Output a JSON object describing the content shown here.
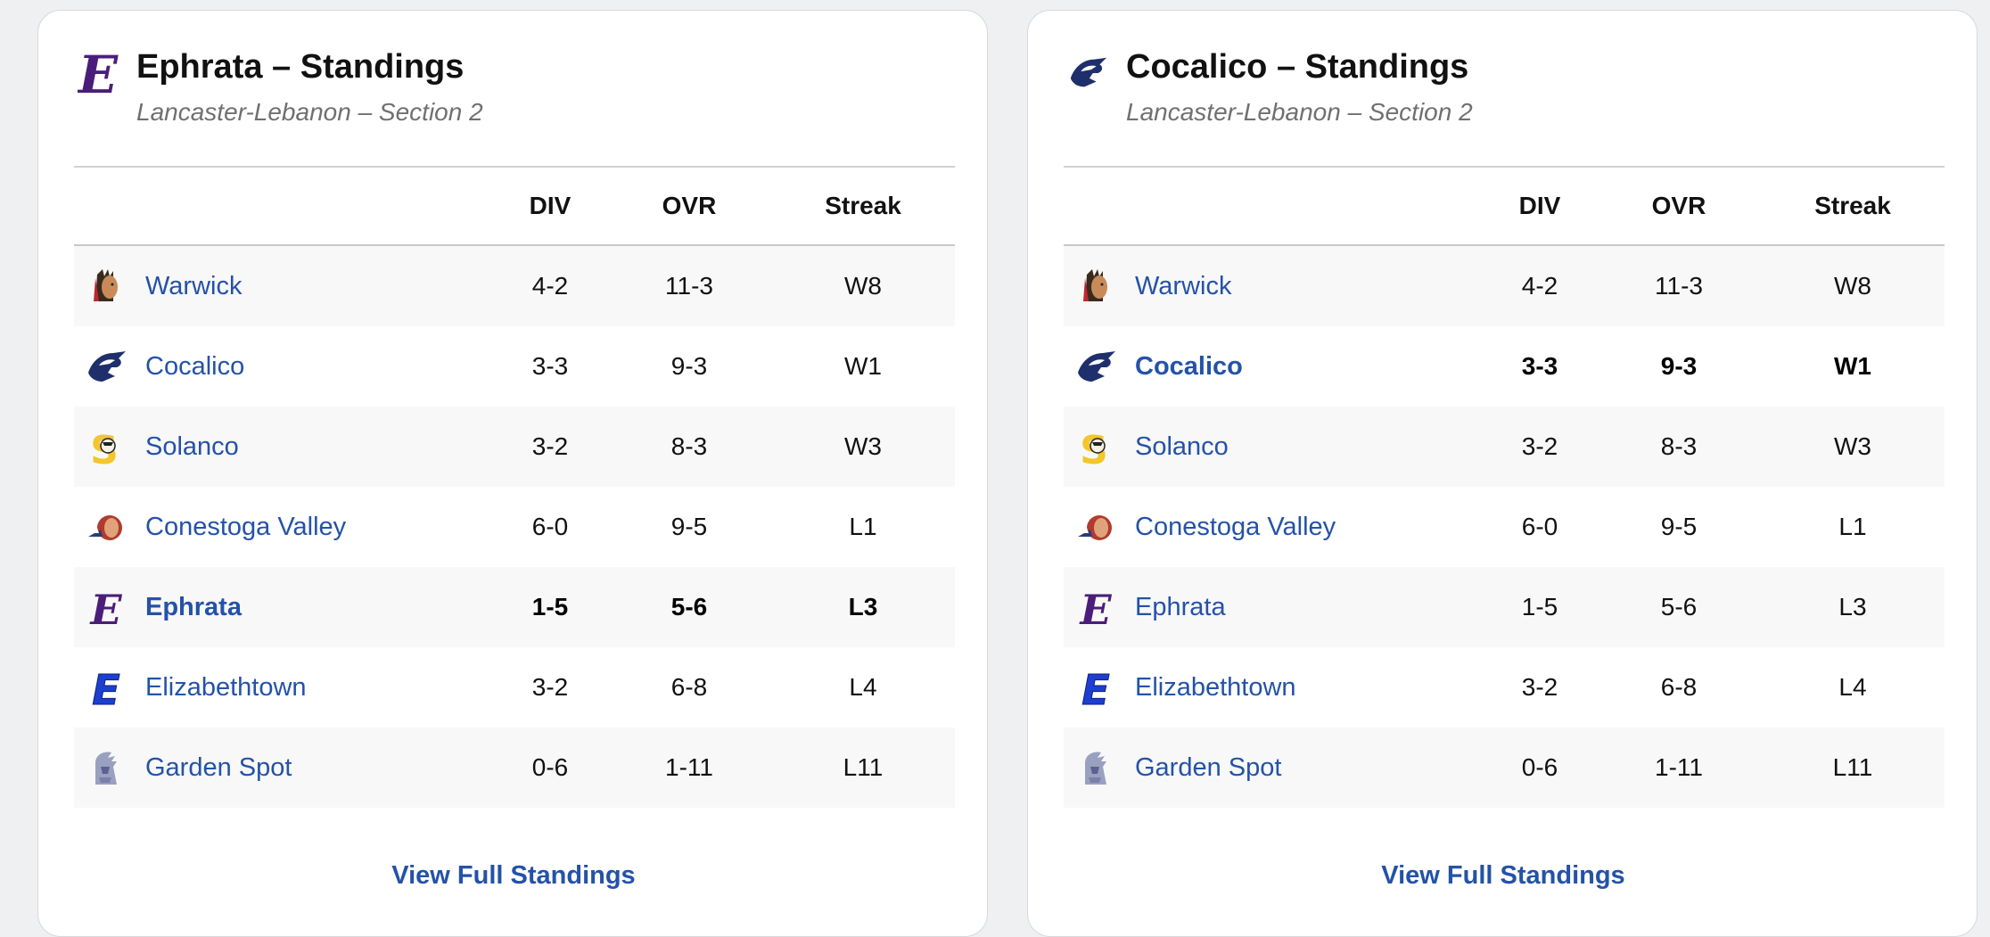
{
  "cards": [
    {
      "title": "Ephrata – Standings",
      "subtitle": "Lancaster-Lebanon – Section 2",
      "header_icon": "ephrata-logo",
      "columns": [
        "DIV",
        "OVR",
        "Streak"
      ],
      "rows": [
        {
          "team": "Warwick",
          "div": "4-2",
          "ovr": "11-3",
          "streak": "W8"
        },
        {
          "team": "Cocalico",
          "div": "3-3",
          "ovr": "9-3",
          "streak": "W1"
        },
        {
          "team": "Solanco",
          "div": "3-2",
          "ovr": "8-3",
          "streak": "W3"
        },
        {
          "team": "Conestoga Valley",
          "div": "6-0",
          "ovr": "9-5",
          "streak": "L1"
        },
        {
          "team": "Ephrata",
          "div": "1-5",
          "ovr": "5-6",
          "streak": "L3"
        },
        {
          "team": "Elizabethtown",
          "div": "3-2",
          "ovr": "6-8",
          "streak": "L4"
        },
        {
          "team": "Garden Spot",
          "div": "0-6",
          "ovr": "1-11",
          "streak": "L11"
        }
      ],
      "highlight_team": "Ephrata",
      "footer_link": "View Full Standings"
    },
    {
      "title": "Cocalico – Standings",
      "subtitle": "Lancaster-Lebanon – Section 2",
      "header_icon": "cocalico-logo",
      "columns": [
        "DIV",
        "OVR",
        "Streak"
      ],
      "rows": [
        {
          "team": "Warwick",
          "div": "4-2",
          "ovr": "11-3",
          "streak": "W8"
        },
        {
          "team": "Cocalico",
          "div": "3-3",
          "ovr": "9-3",
          "streak": "W1"
        },
        {
          "team": "Solanco",
          "div": "3-2",
          "ovr": "8-3",
          "streak": "W3"
        },
        {
          "team": "Conestoga Valley",
          "div": "6-0",
          "ovr": "9-5",
          "streak": "L1"
        },
        {
          "team": "Ephrata",
          "div": "1-5",
          "ovr": "5-6",
          "streak": "L3"
        },
        {
          "team": "Elizabethtown",
          "div": "3-2",
          "ovr": "6-8",
          "streak": "L4"
        },
        {
          "team": "Garden Spot",
          "div": "0-6",
          "ovr": "1-11",
          "streak": "L11"
        }
      ],
      "highlight_team": "Cocalico",
      "footer_link": "View Full Standings"
    }
  ],
  "colors": {
    "link": "#2452a8",
    "ephrata_purple": "#4b1d7a",
    "cocalico_navy": "#1f2f6b",
    "solanco_gold": "#f3c62d",
    "elizabethtown_blue": "#1c3fd0"
  }
}
